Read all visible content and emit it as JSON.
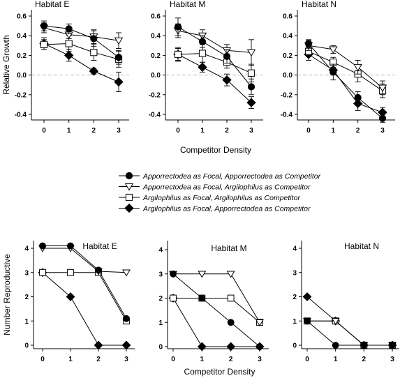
{
  "legend": [
    {
      "label": "Apporrectodea as Focal, Apporrectodea as Competitor",
      "marker": "circle-filled"
    },
    {
      "label": "Apporrectodea as Focal, Argilophilus as Competitor",
      "marker": "triangle-open"
    },
    {
      "label": "Argilophilus as Focal, Argilophilus as Competitor",
      "marker": "square-open"
    },
    {
      "label": "Argilophilus as Focal, Apporrectodea as Competitor",
      "marker": "diamond-filled"
    }
  ],
  "chart_data": [
    {
      "type": "line",
      "title": "Habitat E",
      "ylabel": "Relative Growth",
      "xlabel": "",
      "ylim": [
        -0.55,
        0.62
      ],
      "yticks": [
        -0.4,
        -0.2,
        0.0,
        0.2,
        0.4,
        0.6
      ],
      "yticklabels": [
        "-0.4",
        "-0.2",
        "0.0",
        "0.2",
        "0.4",
        "0.6"
      ],
      "x": [
        0,
        1,
        2,
        3
      ],
      "series": [
        {
          "values": [
            0.5,
            0.47,
            0.37,
            0.18
          ],
          "err": [
            0.05,
            0.05,
            0.08,
            0.07
          ],
          "marker": "circle-filled"
        },
        {
          "values": [
            0.48,
            0.41,
            0.39,
            0.35
          ],
          "err": [
            0.05,
            0.04,
            0.07,
            0.08
          ],
          "marker": "triangle-open"
        },
        {
          "values": [
            0.31,
            0.32,
            0.23,
            0.16
          ],
          "err": [
            0.05,
            0.08,
            0.08,
            0.08
          ],
          "marker": "square-open"
        },
        {
          "values": [
            0.32,
            0.2,
            0.04,
            -0.07
          ],
          "err": [
            0.06,
            0.06,
            0.03,
            0.1
          ],
          "marker": "diamond-filled"
        }
      ]
    },
    {
      "type": "line",
      "title": "Habitat M",
      "xlabel": "Competitor Density",
      "ylim": [
        -0.55,
        0.62
      ],
      "yticks": [
        -0.4,
        -0.2,
        0.0,
        0.2,
        0.4,
        0.6
      ],
      "yticklabels": [
        "-0.4",
        "-0.2",
        "0.0",
        "0.2",
        "0.4",
        "0.6"
      ],
      "x": [
        0,
        1,
        2,
        3
      ],
      "series": [
        {
          "values": [
            0.49,
            0.34,
            0.19,
            -0.12
          ],
          "err": [
            0.09,
            0.06,
            0.07,
            0.08
          ],
          "marker": "circle-filled"
        },
        {
          "values": [
            0.45,
            0.4,
            0.25,
            0.23
          ],
          "err": [
            0.07,
            0.06,
            0.06,
            0.13
          ],
          "marker": "triangle-open"
        },
        {
          "values": [
            0.21,
            0.22,
            0.13,
            0.02
          ],
          "err": [
            0.07,
            0.09,
            0.06,
            0.09
          ],
          "marker": "square-open"
        },
        {
          "values": [
            0.21,
            0.08,
            -0.05,
            -0.28
          ],
          "err": [
            0.06,
            0.05,
            0.06,
            0.06
          ],
          "marker": "diamond-filled"
        }
      ]
    },
    {
      "type": "line",
      "title": "Habitat N",
      "xlabel": "",
      "ylim": [
        -0.55,
        0.62
      ],
      "yticks": [
        -0.4,
        -0.2,
        0.0,
        0.2,
        0.4,
        0.6
      ],
      "yticklabels": [
        "-0.4",
        "-0.2",
        "0.0",
        "0.2",
        "0.4",
        "0.6"
      ],
      "x": [
        0,
        1,
        2,
        3
      ],
      "series": [
        {
          "values": [
            0.32,
            0.03,
            -0.23,
            -0.44
          ],
          "err": [
            0.04,
            0.08,
            0.06,
            0.04
          ],
          "marker": "circle-filled"
        },
        {
          "values": [
            0.3,
            0.26,
            0.08,
            -0.13
          ],
          "err": [
            0.05,
            0.04,
            0.07,
            0.07
          ],
          "marker": "triangle-open"
        },
        {
          "values": [
            0.24,
            0.13,
            0.01,
            -0.16
          ],
          "err": [
            0.05,
            0.05,
            0.08,
            0.07
          ],
          "marker": "square-open"
        },
        {
          "values": [
            0.21,
            0.05,
            -0.29,
            -0.38
          ],
          "err": [
            0.06,
            0.05,
            0.07,
            0.05
          ],
          "marker": "diamond-filled"
        }
      ]
    },
    {
      "type": "line",
      "title": "Habitat E",
      "ylabel": "Number Reproductive",
      "xlabel": "",
      "ylim": [
        -0.15,
        4.4
      ],
      "yticks": [
        0,
        1,
        2,
        3,
        4
      ],
      "yticklabels": [
        "0",
        "1",
        "2",
        "3",
        "4"
      ],
      "x": [
        0,
        1,
        2,
        3
      ],
      "series": [
        {
          "values": [
            4.1,
            4.1,
            3.1,
            1.1
          ],
          "marker": "circle-filled"
        },
        {
          "values": [
            4.0,
            4.0,
            3.05,
            3.0
          ],
          "marker": "triangle-open"
        },
        {
          "values": [
            3.0,
            3.0,
            3.0,
            1.0
          ],
          "marker": "square-open"
        },
        {
          "values": [
            3.0,
            2.0,
            0.0,
            0.0
          ],
          "marker": "diamond-filled"
        }
      ]
    },
    {
      "type": "line",
      "title": "Habitat M",
      "xlabel": "Competitor Density",
      "ylim": [
        -0.15,
        4.4
      ],
      "yticks": [
        0,
        1,
        2,
        3,
        4
      ],
      "yticklabels": [
        "0",
        "1",
        "2",
        "3",
        "4"
      ],
      "x": [
        0,
        1,
        2,
        3
      ],
      "series": [
        {
          "values": [
            3.0,
            2.0,
            1.0,
            0.0
          ],
          "marker": "circle-filled"
        },
        {
          "values": [
            3.0,
            3.0,
            3.0,
            1.0
          ],
          "marker": "triangle-open"
        },
        {
          "values": [
            2.0,
            2.0,
            2.0,
            1.0
          ],
          "marker": "square-open"
        },
        {
          "values": [
            2.0,
            0.0,
            0.0,
            0.0
          ],
          "marker": "diamond-filled"
        }
      ]
    },
    {
      "type": "line",
      "title": "Habitat N",
      "xlabel": "",
      "ylim": [
        -0.15,
        4.4
      ],
      "yticks": [
        0,
        1,
        2,
        3,
        4
      ],
      "yticklabels": [
        "0",
        "1",
        "2",
        "3",
        "4"
      ],
      "x": [
        0,
        1,
        2,
        3
      ],
      "series": [
        {
          "values": [
            1.0,
            0.0,
            0.0,
            0.0
          ],
          "marker": "circle-filled"
        },
        {
          "values": [
            1.0,
            1.0,
            0.0,
            0.0
          ],
          "marker": "triangle-open"
        },
        {
          "values": [
            1.0,
            1.0,
            0.0,
            0.0
          ],
          "marker": "square-open"
        },
        {
          "values": [
            2.0,
            1.0,
            0.0,
            0.0
          ],
          "marker": "diamond-filled"
        }
      ]
    }
  ]
}
